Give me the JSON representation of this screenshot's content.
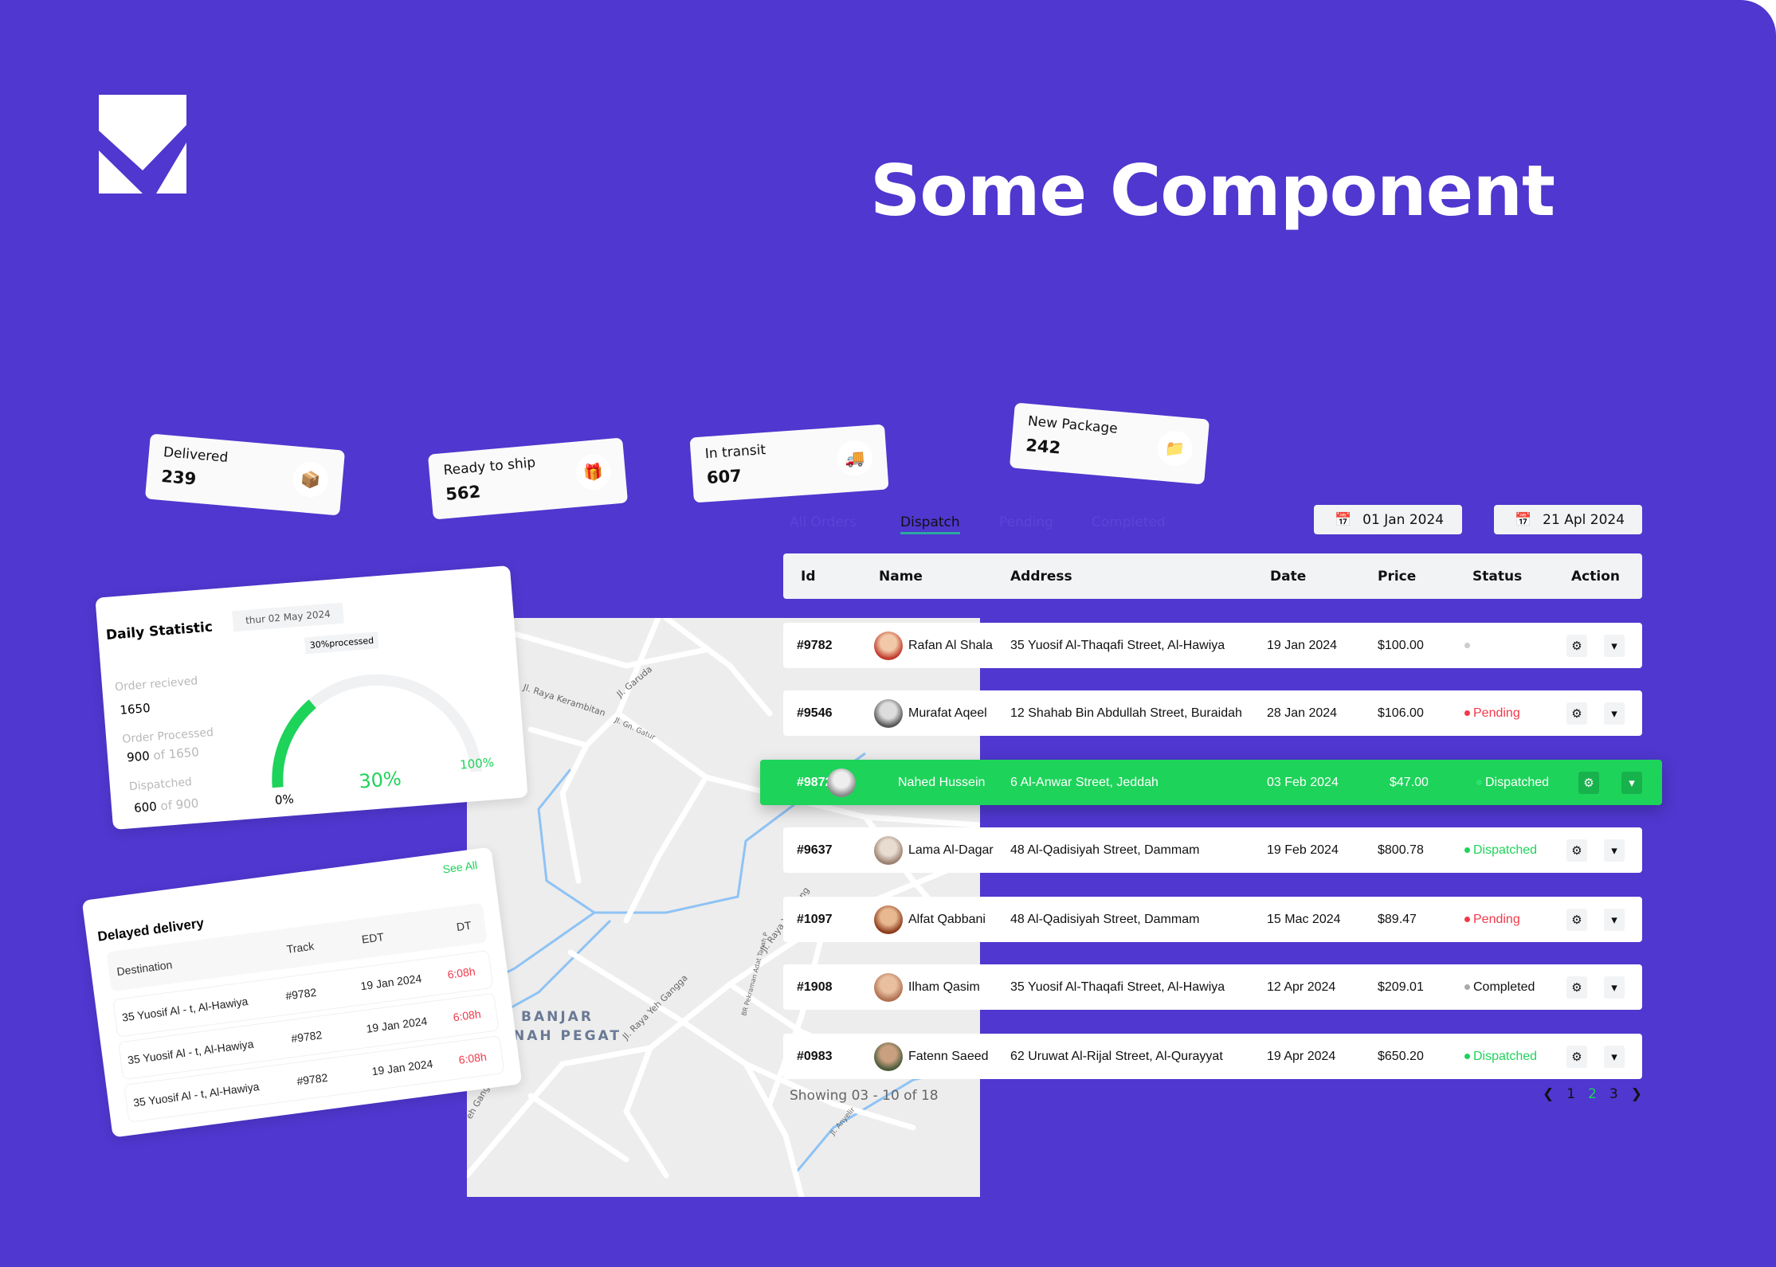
{
  "page_title": "Some Component",
  "colors": {
    "background": "#4F37CF",
    "accent": "#1ED35A",
    "pending": "#F0394A",
    "panel": "#F2F3F5"
  },
  "stats": [
    {
      "label": "Delivered",
      "value": "239",
      "icon": "parcel-delivered-icon"
    },
    {
      "label": "Ready to ship",
      "value": "562",
      "icon": "box-icon"
    },
    {
      "label": "In transit",
      "value": "607",
      "icon": "truck-icon"
    },
    {
      "label": "New Package",
      "value": "242",
      "icon": "folder-package-icon"
    }
  ],
  "tabs": [
    {
      "label": "All Orders",
      "active": false
    },
    {
      "label": "Dispatch",
      "active": true
    },
    {
      "label": "Pending",
      "active": false
    },
    {
      "label": "Completed",
      "active": false
    }
  ],
  "date_from": "01 Jan 2024",
  "date_to": "21 Apl 2024",
  "table": {
    "columns": [
      "Id",
      "Name",
      "Address",
      "Date",
      "Price",
      "Status",
      "Action"
    ],
    "rows": [
      {
        "id": "#9782",
        "name": "Rafan Al Shala",
        "address": "35 Yuosif Al-Thaqafi Street, Al-Hawiya",
        "date": "19 Jan 2024",
        "price": "$100.00",
        "status": "",
        "status_color": "#CCCCCC"
      },
      {
        "id": "#9546",
        "name": "Murafat Aqeel",
        "address": "12 Shahab Bin Abdullah Street, Buraidah",
        "date": "28 Jan 2024",
        "price": "$106.00",
        "status": "Pending",
        "status_color": "#F0394A"
      },
      {
        "id": "#9872",
        "name": "Nahed Hussein",
        "address": "6 Al-Anwar Street, Jeddah",
        "date": "03 Feb 2024",
        "price": "$47.00",
        "status": "Dispatched",
        "status_color": "#FFFFFF",
        "highlighted": true
      },
      {
        "id": "#9637",
        "name": "Lama Al-Dagar",
        "address": "48 Al-Qadisiyah Street, Dammam",
        "date": "19 Feb 2024",
        "price": "$800.78",
        "status": "Dispatched",
        "status_color": "#1ED35A"
      },
      {
        "id": "#1097",
        "name": "Alfat Qabbani",
        "address": "48 Al-Qadisiyah Street, Dammam",
        "date": "15 Mac 2024",
        "price": "$89.47",
        "status": "Pending",
        "status_color": "#F0394A"
      },
      {
        "id": "#1908",
        "name": "Ilham Qasim",
        "address": "35 Yuosif Al-Thaqafi Street, Al-Hawiya",
        "date": "12 Apr 2024",
        "price": "$209.01",
        "status": "Completed",
        "status_color": "#AAAAAA"
      },
      {
        "id": "#0983",
        "name": "Fatenn Saeed",
        "address": "62 Uruwat Al-Rijal Street, Al-Qurayyat",
        "date": "19 Apr 2024",
        "price": "$650.20",
        "status": "Dispatched",
        "status_color": "#1ED35A"
      }
    ]
  },
  "showing": "Showing 03 - 10 of 18",
  "pagination": {
    "pages": [
      "1",
      "2",
      "3"
    ],
    "current": "2"
  },
  "map": {
    "labels": [
      "Jl. Raya Kerambitan",
      "Jl. Garuda",
      "Jl. Gn. Gatur",
      "BANJAR",
      "NAH PEGAT",
      "Jl. Raya Yeh Gangga",
      "Jl. Raya Yeh Gang",
      "BR Pekraman Adat Tanah P",
      "Jl. Anyelir",
      "eh Gangga"
    ]
  },
  "daily": {
    "title": "Daily Statistic",
    "date": "thur 02 May 2024",
    "received_label": "Order recieved",
    "received": "1650",
    "processed_label": "Order Processed",
    "processed": "900",
    "processed_of": "of 1650",
    "dispatched_label": "Dispatched",
    "dispatched": "600",
    "dispatched_of": "of 900",
    "tooltip": "30%processed",
    "progress": 30,
    "min_label": "0%",
    "value_label": "30%",
    "max_label": "100%"
  },
  "delayed": {
    "title": "Delayed delivery",
    "see_all": "See All",
    "columns": [
      "Destination",
      "Track",
      "EDT",
      "DT"
    ],
    "rows": [
      {
        "destination": "35 Yuosif Al - t, Al-Hawiya",
        "track": "#9782",
        "edt": "19 Jan 2024",
        "dt": "6:08h"
      },
      {
        "destination": "35 Yuosif Al - t, Al-Hawiya",
        "track": "#9782",
        "edt": "19 Jan 2024",
        "dt": "6:08h"
      },
      {
        "destination": "35 Yuosif Al - t, Al-Hawiya",
        "track": "#9782",
        "edt": "19 Jan 2024",
        "dt": "6:08h"
      }
    ]
  }
}
